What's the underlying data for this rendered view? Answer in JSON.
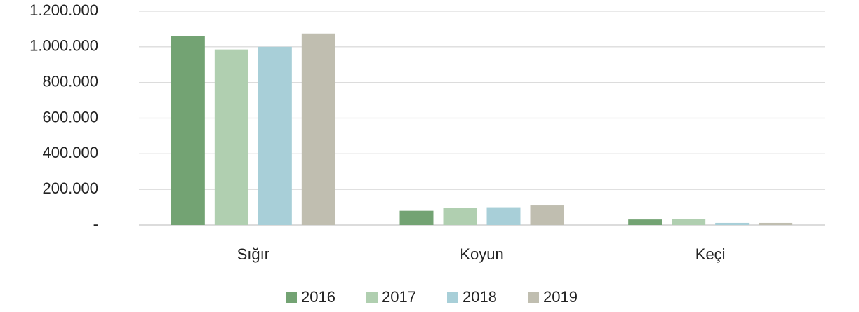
{
  "chart_data": {
    "type": "bar",
    "categories": [
      "Sığır",
      "Koyun",
      "Keçi"
    ],
    "series": [
      {
        "name": "2016",
        "color": "#73a373",
        "values": [
          1060000,
          80000,
          31000
        ]
      },
      {
        "name": "2017",
        "color": "#b0cfb0",
        "values": [
          985000,
          98000,
          35000
        ]
      },
      {
        "name": "2018",
        "color": "#a8cfd8",
        "values": [
          1000000,
          100000,
          12000
        ]
      },
      {
        "name": "2019",
        "color": "#c0beb0",
        "values": [
          1075000,
          110000,
          12000
        ]
      }
    ],
    "ylim": [
      0,
      1200000
    ],
    "yticks": [
      {
        "value": 0,
        "label": "-"
      },
      {
        "value": 200000,
        "label": "200.000"
      },
      {
        "value": 400000,
        "label": "400.000"
      },
      {
        "value": 600000,
        "label": "600.000"
      },
      {
        "value": 800000,
        "label": "800.000"
      },
      {
        "value": 1000000,
        "label": "1.000.000"
      },
      {
        "value": 1200000,
        "label": "1.200.000"
      }
    ],
    "grid": true,
    "legend": "bottom"
  }
}
